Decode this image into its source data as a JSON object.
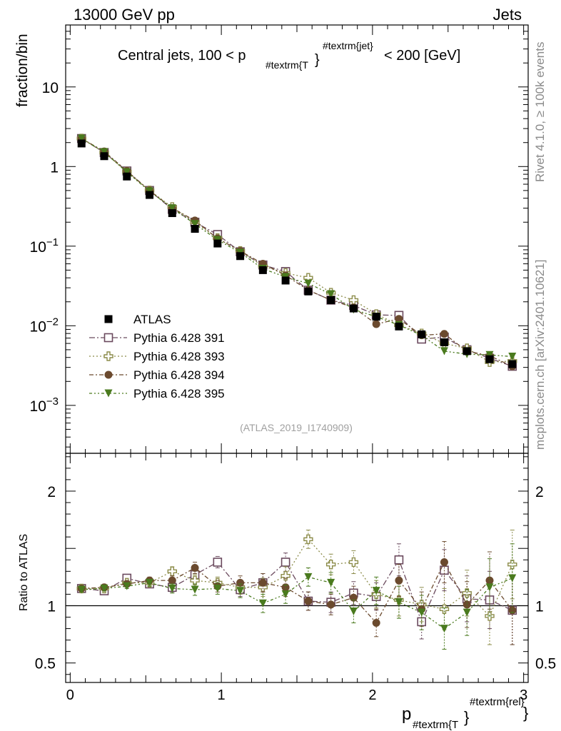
{
  "header": {
    "energy_label": "13000 GeV pp",
    "process_label": "Jets"
  },
  "side_labels": {
    "rivet": "Rivet 4.1.0, ≥ 100k events",
    "mcplots": "mcplots.cern.ch [arXiv:2401.10621]"
  },
  "chart_data": [
    {
      "type": "scatter",
      "title_main": "Central jets, 100 < p",
      "title_sub": "#textrm{T",
      "title_sub2": "}",
      "title_sup": "#textrm{jet}",
      "title_tail": "< 200 [GeV]",
      "ylabel": "fraction/bin",
      "yscale": "log",
      "ylim": [
        0.00025,
        60
      ],
      "xlim": [
        -0.03,
        3.03
      ],
      "analysis_tag": "(ATLAS_2019_I1740909)",
      "y_tick_labels": [
        {
          "value": 10,
          "mantissa": "10",
          "exp": ""
        },
        {
          "value": 1,
          "mantissa": "1",
          "exp": ""
        },
        {
          "value": 0.1,
          "mantissa": "10",
          "exp": "−1"
        },
        {
          "value": 0.01,
          "mantissa": "10",
          "exp": "−2"
        },
        {
          "value": 0.001,
          "mantissa": "10",
          "exp": "−3"
        }
      ],
      "x": [
        0.075,
        0.225,
        0.375,
        0.525,
        0.675,
        0.825,
        0.975,
        1.125,
        1.275,
        1.425,
        1.575,
        1.725,
        1.875,
        2.025,
        2.175,
        2.325,
        2.475,
        2.625,
        2.775,
        2.925
      ],
      "series": [
        {
          "name": "ATLAS",
          "color": "#000000",
          "marker": "square-filled",
          "dash": "",
          "values": [
            1.95,
            1.35,
            0.75,
            0.44,
            0.26,
            0.165,
            0.108,
            0.075,
            0.05,
            0.037,
            0.027,
            0.021,
            0.0165,
            0.013,
            0.0098,
            0.0078,
            0.0062,
            0.0048,
            0.0038,
            0.0033
          ]
        },
        {
          "name": "Pythia 6.428 391",
          "color": "#6b4a5e",
          "marker": "square-open",
          "dash": "8,3,2,3",
          "values": [
            2.25,
            1.5,
            0.88,
            0.5,
            0.29,
            0.2,
            0.14,
            0.085,
            0.058,
            0.048,
            0.028,
            0.021,
            0.018,
            0.0137,
            0.0135,
            0.0068,
            0.0072,
            0.005,
            0.0039,
            0.0031
          ]
        },
        {
          "name": "Pythia 6.428 393",
          "color": "#8c8c4a",
          "marker": "cross-open",
          "dash": "2,3",
          "values": [
            2.25,
            1.5,
            0.86,
            0.5,
            0.31,
            0.2,
            0.126,
            0.087,
            0.056,
            0.046,
            0.04,
            0.026,
            0.021,
            0.014,
            0.0102,
            0.008,
            0.006,
            0.0052,
            0.0035,
            0.0036
          ]
        },
        {
          "name": "Pythia 6.428 394",
          "color": "#6b4a2e",
          "marker": "circle-filled",
          "dash": "6,3,2,3",
          "values": [
            2.25,
            1.55,
            0.88,
            0.5,
            0.3,
            0.21,
            0.125,
            0.087,
            0.06,
            0.043,
            0.028,
            0.021,
            0.017,
            0.0105,
            0.0122,
            0.0076,
            0.0079,
            0.0048,
            0.0042,
            0.0031
          ]
        },
        {
          "name": "Pythia 6.428 395",
          "color": "#4a7a1e",
          "marker": "triangle-down-filled",
          "dash": "4,3,2,3,2,3",
          "values": [
            2.25,
            1.52,
            0.85,
            0.49,
            0.3,
            0.19,
            0.12,
            0.083,
            0.052,
            0.041,
            0.034,
            0.025,
            0.016,
            0.013,
            0.0102,
            0.0076,
            0.0048,
            0.0044,
            0.0043,
            0.0041
          ]
        }
      ]
    },
    {
      "type": "scatter",
      "ylabel": "Ratio to ATLAS",
      "ylim": [
        0.33,
        2.33
      ],
      "xlim": [
        -0.03,
        3.03
      ],
      "reference_line": 1,
      "y_tick_labels": [
        {
          "value": 2,
          "label": "2"
        },
        {
          "value": 1,
          "label": "1"
        },
        {
          "value": 0.5,
          "label": "0.5"
        }
      ],
      "x_tick_labels": [
        {
          "value": 0,
          "label": "0"
        },
        {
          "value": 1,
          "label": "1"
        },
        {
          "value": 2,
          "label": "2"
        },
        {
          "value": 3,
          "label": "3"
        }
      ],
      "xlabel_main": "p",
      "xlabel_sub": "#textrm{T",
      "xlabel_sub2": "}",
      "xlabel_sup": "#textrm{rel}",
      "x": [
        0.075,
        0.225,
        0.375,
        0.525,
        0.675,
        0.825,
        0.975,
        1.125,
        1.275,
        1.425,
        1.575,
        1.725,
        1.875,
        2.025,
        2.175,
        2.325,
        2.475,
        2.625,
        2.775,
        2.925
      ],
      "series": [
        {
          "name": "Pythia 6.428 391",
          "values": [
            1.15,
            1.13,
            1.24,
            1.19,
            1.16,
            1.27,
            1.38,
            1.14,
            1.2,
            1.38,
            1.04,
            1.03,
            1.11,
            1.08,
            1.4,
            0.86,
            1.31,
            1.06,
            1.05,
            0.96
          ],
          "errors": [
            0.02,
            0.02,
            0.02,
            0.03,
            0.04,
            0.05,
            0.05,
            0.06,
            0.08,
            0.08,
            0.08,
            0.09,
            0.1,
            0.12,
            0.14,
            0.15,
            0.18,
            0.2,
            0.25,
            0.3
          ]
        },
        {
          "name": "Pythia 6.428 393",
          "values": [
            1.15,
            1.15,
            1.2,
            1.2,
            1.3,
            1.22,
            1.2,
            1.16,
            1.16,
            1.26,
            1.58,
            1.36,
            1.38,
            1.1,
            1.05,
            1.01,
            0.97,
            1.11,
            0.91,
            1.36
          ],
          "errors": [
            0.02,
            0.02,
            0.02,
            0.03,
            0.04,
            0.05,
            0.05,
            0.06,
            0.08,
            0.08,
            0.08,
            0.09,
            0.1,
            0.12,
            0.14,
            0.15,
            0.18,
            0.2,
            0.25,
            0.3
          ]
        },
        {
          "name": "Pythia 6.428 394",
          "values": [
            1.15,
            1.16,
            1.19,
            1.22,
            1.22,
            1.33,
            1.17,
            1.2,
            1.2,
            1.16,
            1.04,
            1.01,
            1.07,
            0.85,
            1.22,
            0.97,
            1.38,
            1.01,
            1.22,
            0.96
          ],
          "errors": [
            0.02,
            0.02,
            0.02,
            0.03,
            0.04,
            0.05,
            0.05,
            0.06,
            0.08,
            0.08,
            0.08,
            0.09,
            0.1,
            0.12,
            0.14,
            0.15,
            0.18,
            0.2,
            0.25,
            0.3
          ]
        },
        {
          "name": "Pythia 6.428 395",
          "values": [
            1.14,
            1.15,
            1.17,
            1.2,
            1.15,
            1.14,
            1.15,
            1.13,
            1.02,
            1.1,
            1.25,
            1.2,
            0.95,
            1.13,
            1.03,
            0.94,
            0.8,
            0.94,
            1.16,
            1.24
          ],
          "errors": [
            0.02,
            0.02,
            0.02,
            0.03,
            0.04,
            0.05,
            0.05,
            0.06,
            0.08,
            0.08,
            0.08,
            0.09,
            0.1,
            0.12,
            0.14,
            0.15,
            0.18,
            0.2,
            0.25,
            0.3
          ]
        }
      ]
    }
  ]
}
